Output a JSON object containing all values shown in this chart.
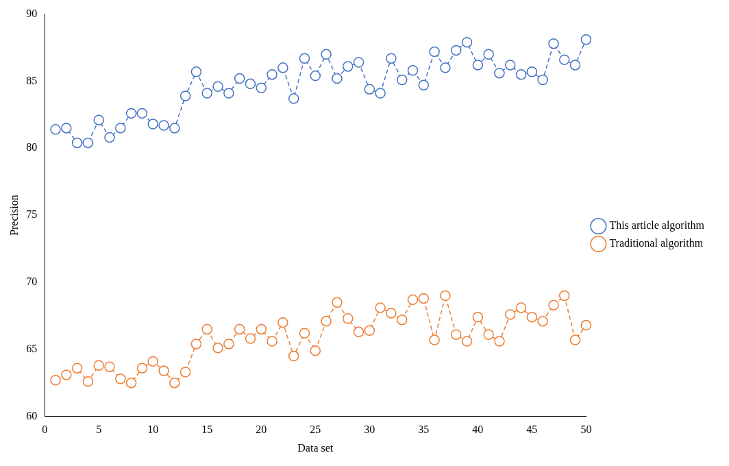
{
  "chart_data": {
    "type": "line",
    "xlabel": "Data set",
    "ylabel": "Precision",
    "x": [
      1,
      2,
      3,
      4,
      5,
      6,
      7,
      8,
      9,
      10,
      11,
      12,
      13,
      14,
      15,
      16,
      17,
      18,
      19,
      20,
      21,
      22,
      23,
      24,
      25,
      26,
      27,
      28,
      29,
      30,
      31,
      32,
      33,
      34,
      35,
      36,
      37,
      38,
      39,
      40,
      41,
      42,
      43,
      44,
      45,
      46,
      47,
      48,
      49,
      50
    ],
    "series": [
      {
        "name": "This article algorithm",
        "color": "#4472c4",
        "values": [
          81.4,
          81.5,
          80.4,
          80.4,
          82.1,
          80.8,
          81.5,
          82.6,
          82.6,
          81.8,
          81.7,
          81.5,
          83.9,
          85.7,
          84.1,
          84.6,
          84.1,
          85.2,
          84.8,
          84.5,
          85.5,
          86.0,
          83.7,
          86.7,
          85.4,
          87.0,
          85.2,
          86.1,
          86.4,
          84.4,
          84.1,
          86.7,
          85.1,
          85.8,
          84.7,
          87.2,
          86.0,
          87.3,
          87.9,
          86.2,
          87.0,
          85.6,
          86.2,
          85.5,
          85.7,
          85.1,
          87.8,
          86.6,
          86.2,
          88.1
        ]
      },
      {
        "name": "Traditional algorithm",
        "color": "#ed7d31",
        "values": [
          62.7,
          63.1,
          63.6,
          62.6,
          63.8,
          63.7,
          62.8,
          62.5,
          63.6,
          64.1,
          63.4,
          62.5,
          63.3,
          65.4,
          66.5,
          65.1,
          65.4,
          66.5,
          65.8,
          66.5,
          65.6,
          67.0,
          64.5,
          66.2,
          64.9,
          67.1,
          68.5,
          67.3,
          66.3,
          66.4,
          68.1,
          67.7,
          67.2,
          68.7,
          68.8,
          65.7,
          69.0,
          66.1,
          65.6,
          67.4,
          66.1,
          65.6,
          67.6,
          68.1,
          67.4,
          67.1,
          68.3,
          69.0,
          65.7,
          66.8
        ]
      }
    ],
    "xlim": [
      0,
      50
    ],
    "xticks": [
      0,
      5,
      10,
      15,
      20,
      25,
      30,
      35,
      40,
      45,
      50
    ],
    "ylim": [
      60,
      90
    ],
    "yticks": [
      60,
      65,
      70,
      75,
      80,
      85,
      90
    ],
    "grid": false,
    "legend": "right",
    "marker": "circle",
    "line_style": "dashed"
  }
}
